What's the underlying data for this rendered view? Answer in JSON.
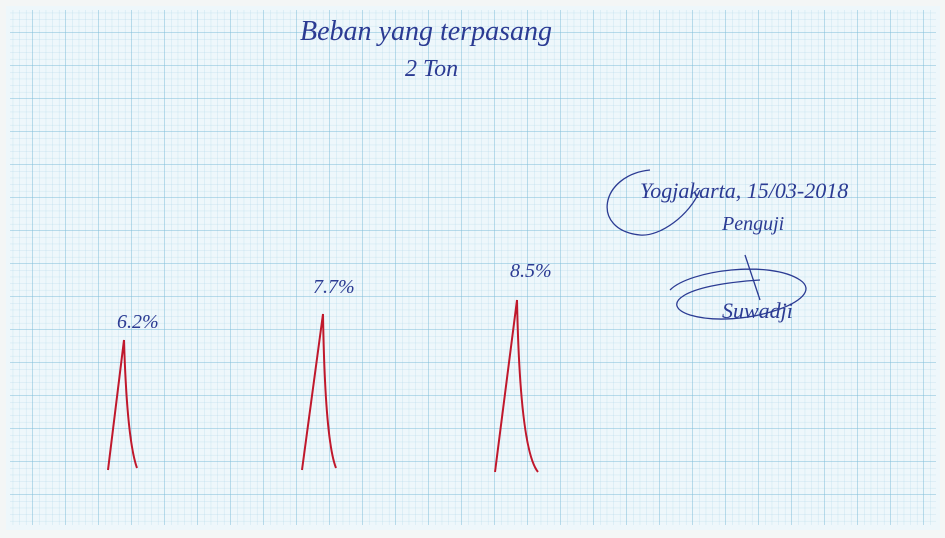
{
  "header": {
    "title": "Beban yang terpasang",
    "subtitle": "2 Ton"
  },
  "peaks": [
    {
      "label": "6.2%"
    },
    {
      "label": "7.7%"
    },
    {
      "label": "8.5%"
    }
  ],
  "signature": {
    "place_date": "Yogjakarta, 15/03-2018",
    "role": "Penguji",
    "name": "Suwadji"
  }
}
